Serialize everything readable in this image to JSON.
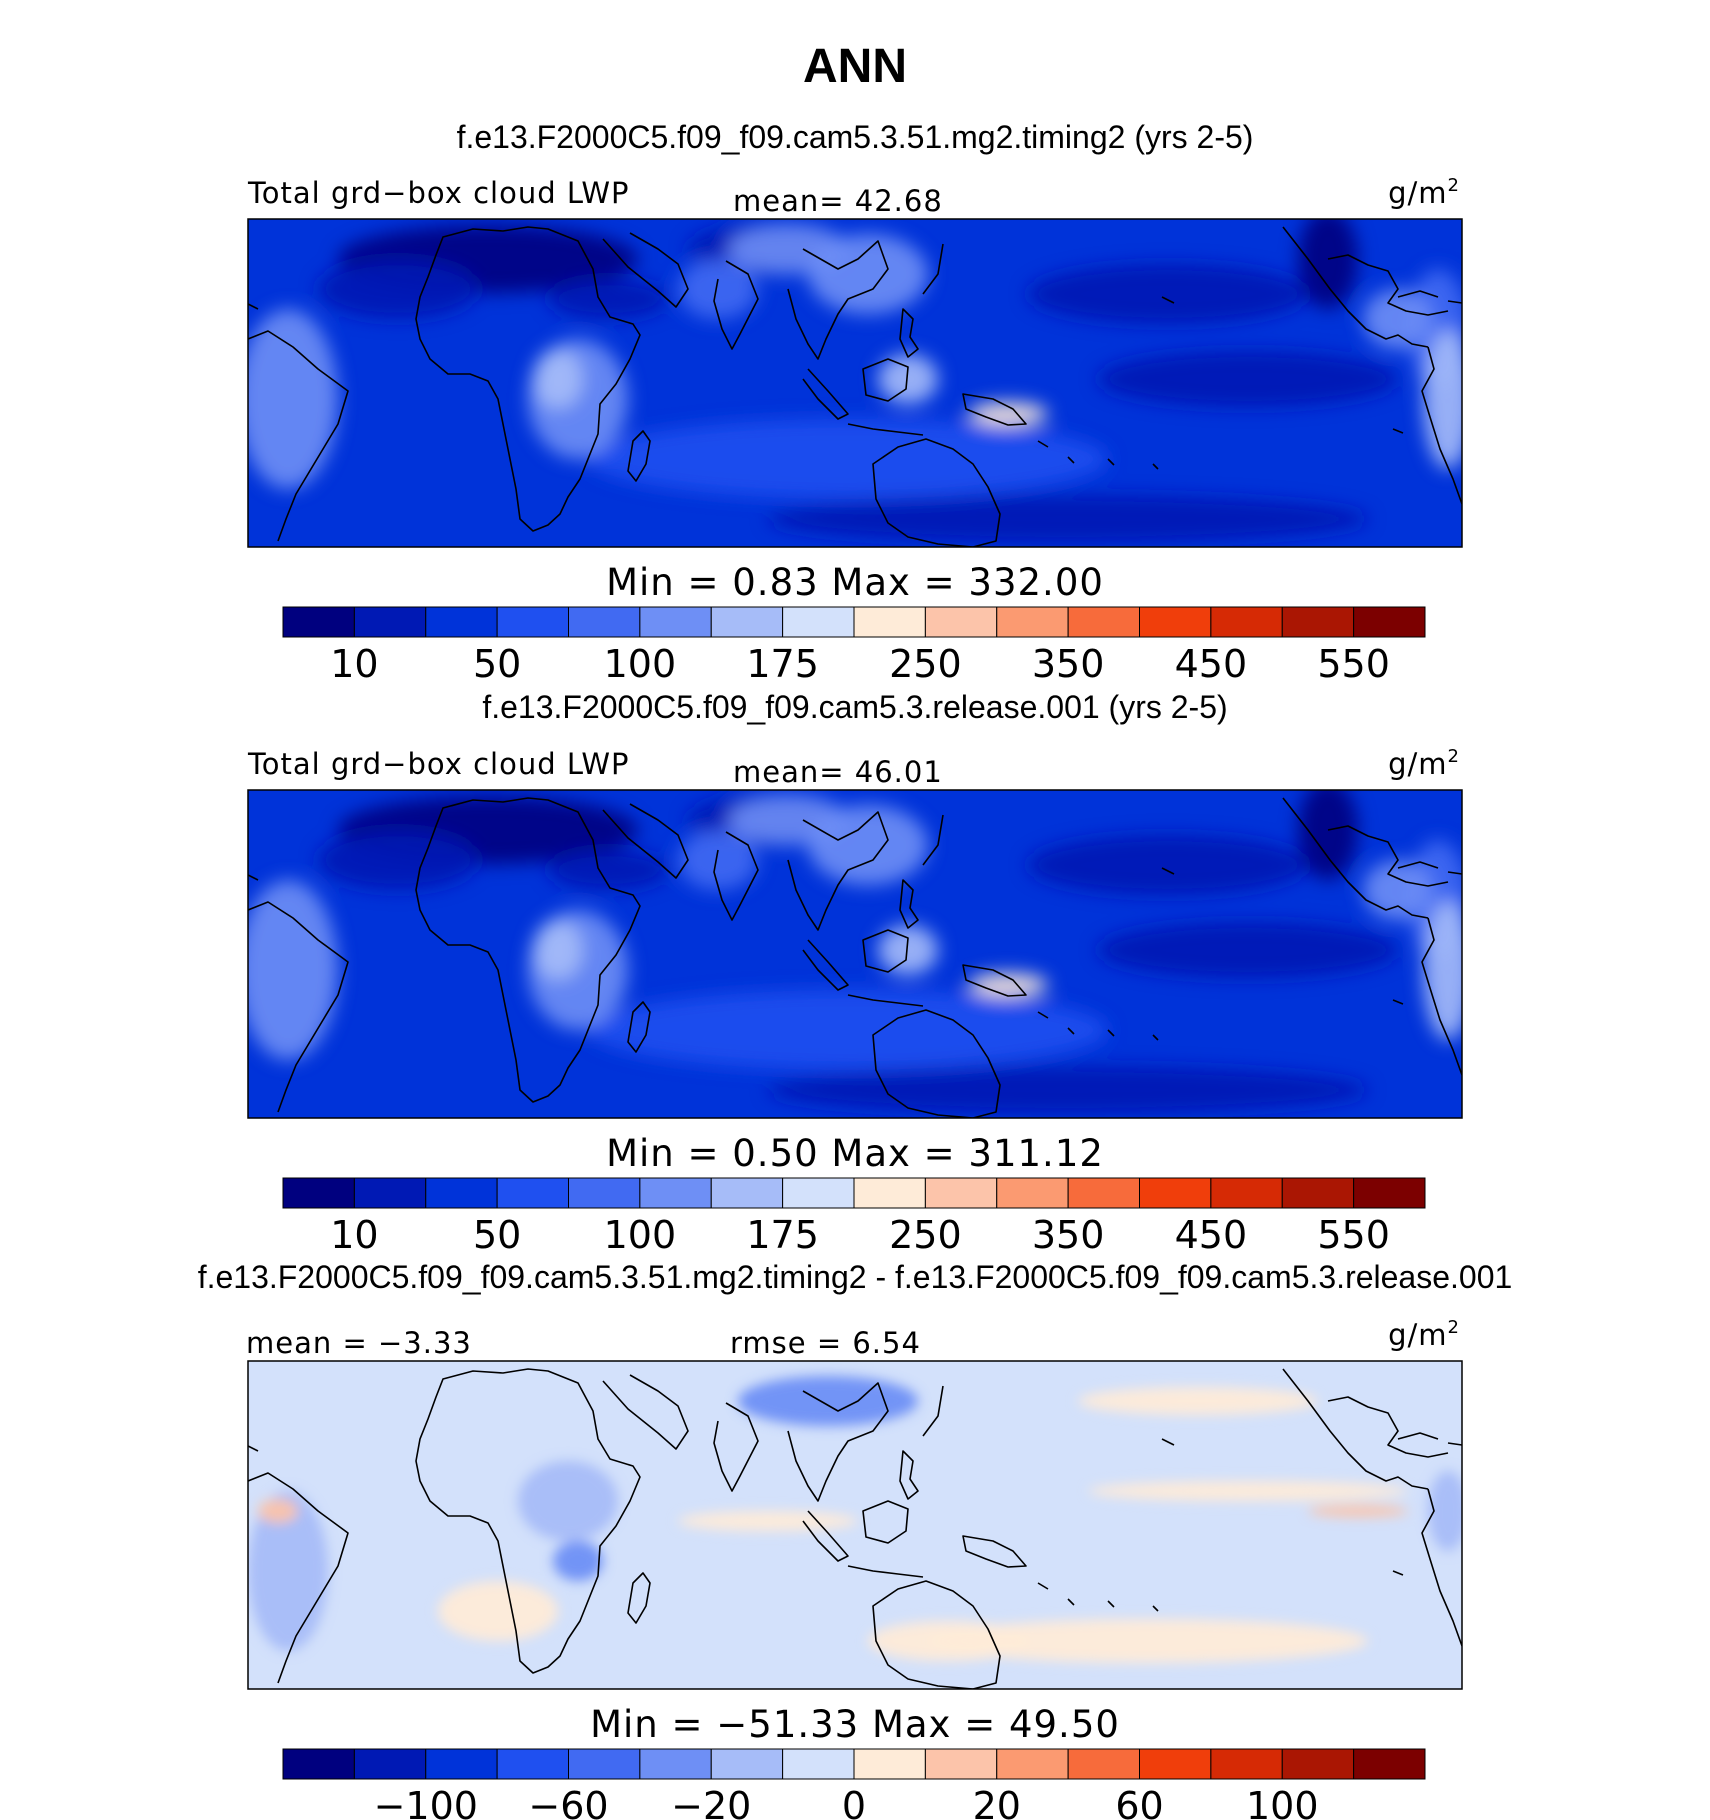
{
  "page": {
    "title": "ANN"
  },
  "colors": {
    "palette": [
      "#00007f",
      "#0019b4",
      "#0033d9",
      "#1f50f0",
      "#416af2",
      "#6e8ff5",
      "#a6bcf8",
      "#d3e1fb",
      "#feebd8",
      "#fcc4aa",
      "#fb9a71",
      "#f76b3b",
      "#f03e0b",
      "#d62a05",
      "#aa1603",
      "#7c0000"
    ],
    "coastline": "#000000"
  },
  "chart_data": [
    {
      "type": "heatmap",
      "case_title": "f.e13.F2000C5.f09_f09.cam5.3.51.mg2.timing2 (yrs 2-5)",
      "variable": "Total grd−box cloud LWP",
      "mean_label": "mean=",
      "mean_value": "42.68",
      "units": "g/m",
      "units_sup": "2",
      "min_label": "Min  =",
      "min_value": "0.83",
      "max_label": "Max  =",
      "max_value": "332.00",
      "colorbar_ticks": [
        "10",
        "50",
        "100",
        "175",
        "250",
        "350",
        "450",
        "550"
      ],
      "field_min": 0.83,
      "field_max": 332.0
    },
    {
      "type": "heatmap",
      "case_title": "f.e13.F2000C5.f09_f09.cam5.3.release.001 (yrs 2-5)",
      "variable": "Total grd−box cloud LWP",
      "mean_label": "mean=",
      "mean_value": "46.01",
      "units": "g/m",
      "units_sup": "2",
      "min_label": "Min  =",
      "min_value": "0.50",
      "max_label": "Max  =",
      "max_value": "311.12",
      "colorbar_ticks": [
        "10",
        "50",
        "100",
        "175",
        "250",
        "350",
        "450",
        "550"
      ],
      "field_min": 0.5,
      "field_max": 311.12
    },
    {
      "type": "heatmap",
      "case_title": "f.e13.F2000C5.f09_f09.cam5.3.51.mg2.timing2 - f.e13.F2000C5.f09_f09.cam5.3.release.001",
      "mean_label": "mean =",
      "mean_value": "−3.33",
      "rmse_label": "rmse =",
      "rmse_value": "6.54",
      "units": "g/m",
      "units_sup": "2",
      "min_label": "Min  =",
      "min_value": "−51.33",
      "max_label": "Max  =",
      "max_value": "49.50",
      "colorbar_ticks": [
        "−100",
        "−60",
        "−20",
        "0",
        "20",
        "60",
        "100"
      ],
      "field_min": -51.33,
      "field_max": 49.5
    }
  ]
}
